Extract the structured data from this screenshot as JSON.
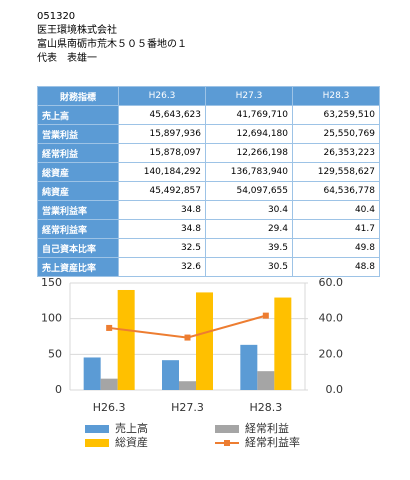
{
  "header": {
    "lines": [
      "051320",
      "医王環境株式会社",
      "富山県南砺市荒木５０５番地の１",
      "代表　表雄一"
    ]
  },
  "table": {
    "columns": [
      "財務指標",
      "H26.3",
      "H27.3",
      "H28.3"
    ],
    "rows": [
      [
        "売上高",
        "45,643,623",
        "41,769,710",
        "63,259,510"
      ],
      [
        "営業利益",
        "15,897,936",
        "12,694,180",
        "25,550,769"
      ],
      [
        "経常利益",
        "15,878,097",
        "12,266,198",
        "26,353,223"
      ],
      [
        "総資産",
        "140,184,292",
        "136,783,940",
        "129,558,627"
      ],
      [
        "純資産",
        "45,492,857",
        "54,097,655",
        "64,536,778"
      ],
      [
        "営業利益率",
        "34.8",
        "30.4",
        "40.4"
      ],
      [
        "経常利益率",
        "34.8",
        "29.4",
        "41.7"
      ],
      [
        "自己資本比率",
        "32.5",
        "39.5",
        "49.8"
      ],
      [
        "売上資産比率",
        "32.6",
        "30.5",
        "48.8"
      ]
    ]
  },
  "chart_data": {
    "type": "bar",
    "categories": [
      "H26.3",
      "H27.3",
      "H28.3"
    ],
    "series": [
      {
        "name": "売上高",
        "color": "#5b9bd5",
        "values": [
          45.6,
          41.8,
          63.3
        ]
      },
      {
        "name": "経常利益",
        "color": "#a5a5a5",
        "values": [
          15.9,
          12.3,
          26.4
        ]
      },
      {
        "name": "総資産",
        "color": "#ffc000",
        "values": [
          140.2,
          136.8,
          129.6
        ]
      },
      {
        "name": "経常利益率",
        "color": "#ed7d31",
        "type": "line",
        "axis": "y2",
        "values": [
          34.8,
          29.4,
          41.7
        ]
      }
    ],
    "ylim": [
      0,
      150
    ],
    "yticks": [
      0,
      50,
      100,
      150
    ],
    "y2lim": [
      0,
      60
    ],
    "y2ticks": [
      {
        "value": 0,
        "label": "0.0"
      },
      {
        "value": 20,
        "label": "20.0"
      },
      {
        "value": 40,
        "label": "40.0"
      },
      {
        "value": 60,
        "label": "60.0"
      }
    ],
    "grid": true
  }
}
